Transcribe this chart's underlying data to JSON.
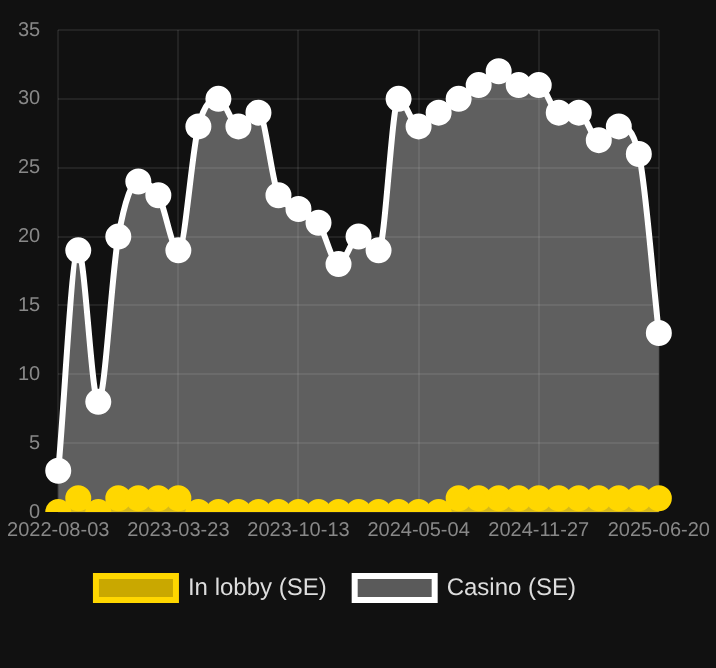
{
  "chart_data": {
    "type": "area",
    "categories": [
      "2022-08-03",
      null,
      null,
      null,
      null,
      null,
      "2023-03-23",
      null,
      null,
      null,
      null,
      null,
      "2023-10-13",
      null,
      null,
      null,
      null,
      null,
      "2024-05-04",
      null,
      null,
      null,
      null,
      null,
      "2024-11-27",
      null,
      null,
      null,
      null,
      null,
      "2025-06-20"
    ],
    "series": [
      {
        "name": "In lobby (SE)",
        "color": "#ffd700",
        "values": [
          0,
          1,
          0,
          1,
          1,
          1,
          1,
          0,
          0,
          0,
          0,
          0,
          0,
          0,
          0,
          0,
          0,
          0,
          0,
          0,
          1,
          1,
          1,
          1,
          1,
          1,
          1,
          1,
          1,
          1,
          1
        ]
      },
      {
        "name": "Casino (SE)",
        "color": "#ffffff",
        "values": [
          3,
          19,
          8,
          20,
          24,
          23,
          19,
          28,
          30,
          28,
          29,
          23,
          22,
          21,
          18,
          20,
          19,
          30,
          28,
          29,
          30,
          31,
          32,
          31,
          31,
          29,
          29,
          27,
          28,
          26,
          13
        ]
      }
    ],
    "ylim": [
      0,
      35
    ],
    "yticks": [
      0,
      5,
      10,
      15,
      20,
      25,
      30,
      35
    ],
    "grid": true,
    "legend": "bottom",
    "marker": "circle"
  }
}
